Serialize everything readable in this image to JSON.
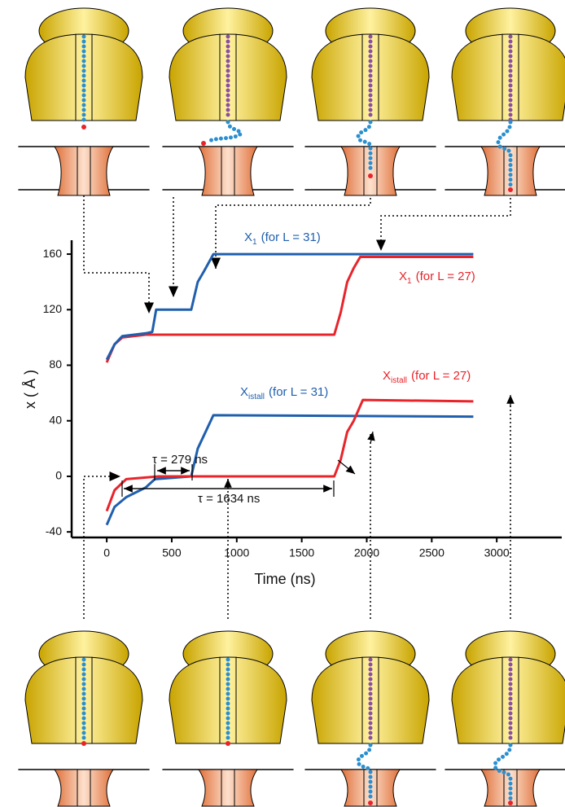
{
  "chart_data": {
    "type": "line",
    "x_label": "Time (ns)",
    "y_label": "x ( Å )",
    "xlim": [
      -270,
      3500
    ],
    "xticks": [
      0,
      500,
      1000,
      1500,
      2000,
      2500,
      3000
    ],
    "ylim": [
      -44,
      170
    ],
    "yticks": [
      -40,
      0,
      40,
      80,
      120,
      160
    ],
    "series": [
      {
        "color": "#e8242b",
        "x": [
          0,
          60,
          120,
          300,
          1000,
          1750,
          1800,
          1850,
          1900,
          1950,
          2820
        ],
        "y": [
          82,
          95,
          100,
          102,
          102,
          102,
          118,
          140,
          150,
          158,
          158
        ]
      },
      {
        "color": "#1f5fad",
        "x": [
          0,
          60,
          120,
          300,
          350,
          380,
          650,
          700,
          750,
          820,
          2820
        ],
        "y": [
          84,
          95,
          101,
          103,
          104,
          120,
          120,
          140,
          148,
          160,
          160
        ]
      },
      {
        "color": "#1f5fad",
        "x": [
          0,
          60,
          150,
          300,
          370,
          650,
          700,
          750,
          820,
          2820
        ],
        "y": [
          -35,
          -22,
          -15,
          -8,
          -2,
          0,
          20,
          30,
          44,
          43
        ]
      },
      {
        "color": "#e8242b",
        "x": [
          0,
          60,
          150,
          400,
          1750,
          1800,
          1850,
          1900,
          1970,
          2820
        ],
        "y": [
          -25,
          -10,
          -2,
          0,
          0,
          12,
          32,
          40,
          55,
          54
        ]
      }
    ],
    "annotations": [
      {
        "main": "X",
        "sub": "1",
        "rest": "(for L = 31)",
        "color": "#1f5fad"
      },
      {
        "main": "X",
        "sub": "1",
        "rest": "(for L = 27)",
        "color": "#e8242b"
      },
      {
        "main": "X",
        "sub": "istall",
        "rest": "(for L = 31)",
        "color": "#1f5fad"
      },
      {
        "main": "X",
        "sub": "istall",
        "rest": "(for L = 27)",
        "color": "#e8242b"
      },
      {
        "text": "τ = 279 ns"
      },
      {
        "text": "τ = 1634 ns"
      }
    ]
  }
}
